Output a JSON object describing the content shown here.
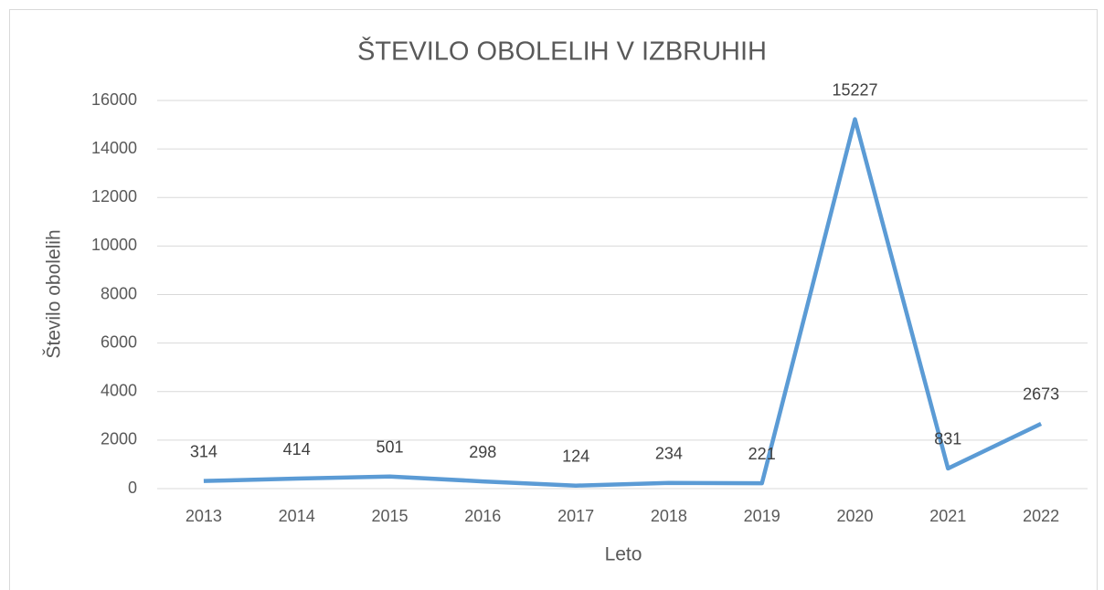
{
  "chart_data": {
    "type": "line",
    "title": "ŠTEVILO OBOLELIH V IZBRUHIH",
    "x_label": "Leto",
    "y_label": "Število obolelih",
    "categories": [
      "2013",
      "2014",
      "2015",
      "2016",
      "2017",
      "2018",
      "2019",
      "2020",
      "2021",
      "2022"
    ],
    "values": [
      314,
      414,
      501,
      298,
      124,
      234,
      221,
      15227,
      831,
      2673
    ],
    "color": "#5b9bd5",
    "ylim": [
      0,
      16000
    ],
    "yticks": [
      0,
      2000,
      4000,
      6000,
      8000,
      10000,
      12000,
      14000,
      16000
    ],
    "grid": true
  }
}
